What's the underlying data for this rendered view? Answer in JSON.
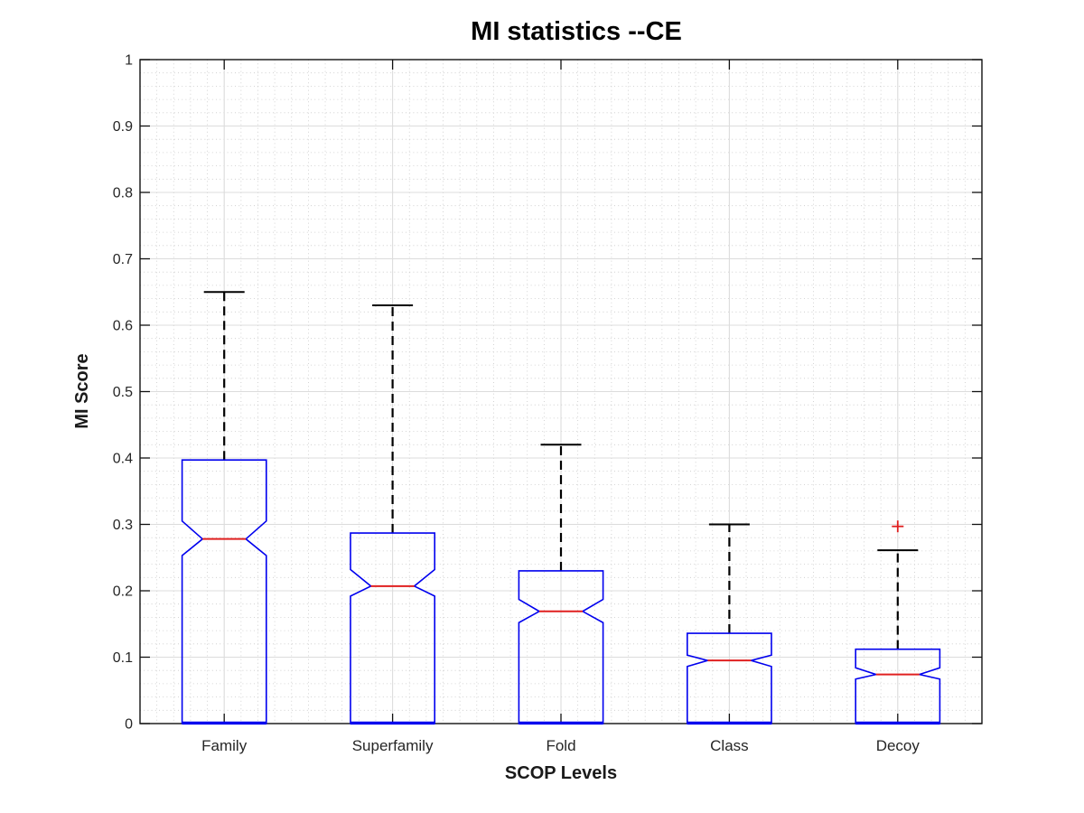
{
  "chart_data": {
    "type": "boxplot",
    "title": "MI statistics --CE",
    "xlabel": "SCOP Levels",
    "ylabel": "MI Score",
    "ylim": [
      0,
      1
    ],
    "yticks": [
      0,
      0.1,
      0.2,
      0.3,
      0.4,
      0.5,
      0.6,
      0.7,
      0.8,
      0.9,
      1
    ],
    "ytick_labels": [
      "0",
      "0.1",
      "0.2",
      "0.3",
      "0.4",
      "0.5",
      "0.6",
      "0.7",
      "0.8",
      "0.9",
      "1"
    ],
    "grid": {
      "major": true,
      "minor": true,
      "y_minor_step": 0.02,
      "x_minor_divisions_per_slot": 10
    },
    "legend": "none",
    "notched": true,
    "categories": [
      "Family",
      "Superfamily",
      "Fold",
      "Class",
      "Decoy"
    ],
    "series": [
      {
        "category": "Family",
        "whisker_high": 0.65,
        "q3": 0.397,
        "notch_high": 0.305,
        "median": 0.278,
        "notch_low": 0.253,
        "q1": 0,
        "whisker_low": 0,
        "outliers": []
      },
      {
        "category": "Superfamily",
        "whisker_high": 0.63,
        "q3": 0.287,
        "notch_high": 0.232,
        "median": 0.207,
        "notch_low": 0.192,
        "q1": 0,
        "whisker_low": 0,
        "outliers": []
      },
      {
        "category": "Fold",
        "whisker_high": 0.42,
        "q3": 0.23,
        "notch_high": 0.187,
        "median": 0.169,
        "notch_low": 0.152,
        "q1": 0,
        "whisker_low": 0,
        "outliers": []
      },
      {
        "category": "Class",
        "whisker_high": 0.3,
        "q3": 0.136,
        "notch_high": 0.103,
        "median": 0.095,
        "notch_low": 0.086,
        "q1": 0,
        "whisker_low": 0,
        "outliers": []
      },
      {
        "category": "Decoy",
        "whisker_high": 0.261,
        "q3": 0.112,
        "notch_high": 0.084,
        "median": 0.074,
        "notch_low": 0.067,
        "q1": 0,
        "whisker_low": 0,
        "outliers": [
          0.297
        ]
      }
    ],
    "colors": {
      "box": "#0000ee",
      "median": "#e02020",
      "outlier": "#e02020",
      "whisker": "#000000",
      "whisker_cap": "#000000",
      "grid_major": "#dcdcdc",
      "grid_minor": "#c9c9c9",
      "axis": "#111111",
      "tick_label": "#262626",
      "background": "#ffffff"
    }
  }
}
